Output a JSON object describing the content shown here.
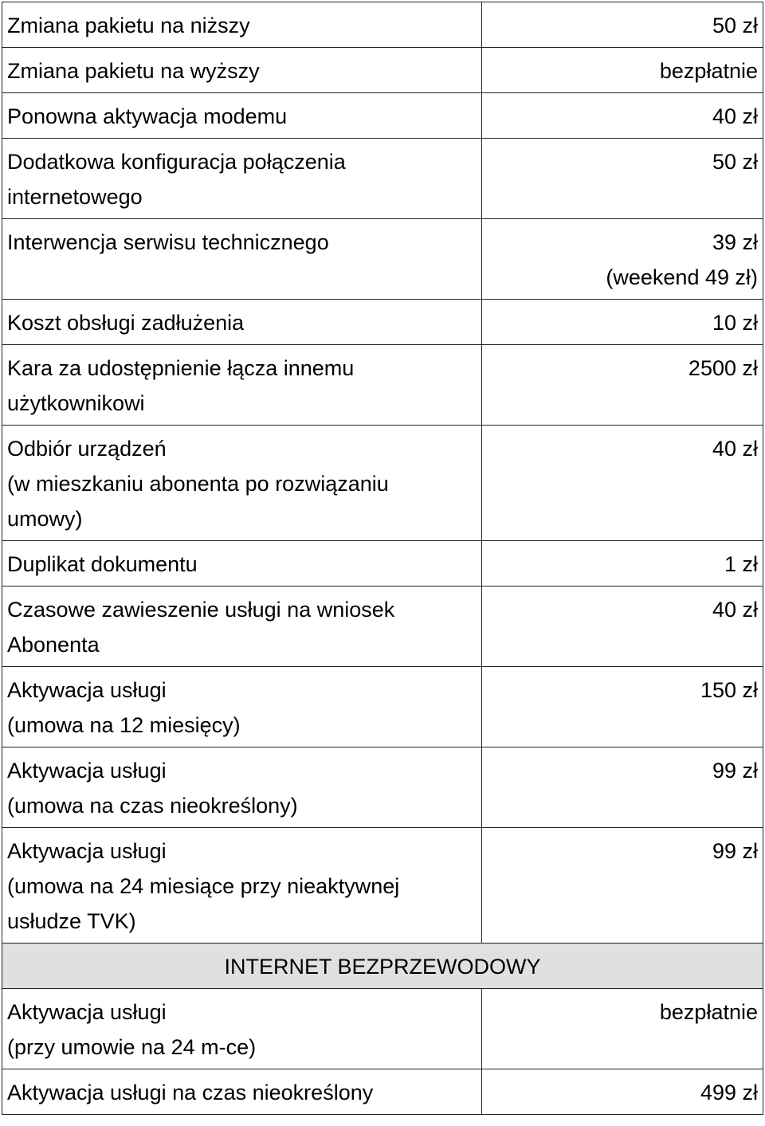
{
  "rows": [
    {
      "label": [
        "Zmiana pakietu na niższy"
      ],
      "price": [
        "50 zł"
      ]
    },
    {
      "label": [
        "Zmiana pakietu na wyższy"
      ],
      "price": [
        "bezpłatnie"
      ]
    },
    {
      "label": [
        "Ponowna aktywacja modemu"
      ],
      "price": [
        "40 zł"
      ]
    },
    {
      "label": [
        "Dodatkowa konfiguracja połączenia",
        "internetowego"
      ],
      "price": [
        "50 zł"
      ]
    },
    {
      "label": [
        "Interwencja serwisu technicznego"
      ],
      "price": [
        "39 zł",
        "(weekend 49 zł)"
      ]
    },
    {
      "label": [
        "Koszt obsługi zadłużenia"
      ],
      "price": [
        "10 zł"
      ]
    },
    {
      "label": [
        "Kara za udostępnienie łącza innemu",
        "użytkownikowi"
      ],
      "price": [
        "2500 zł"
      ]
    },
    {
      "label": [
        "Odbiór urządzeń",
        "(w mieszkaniu abonenta po rozwiązaniu",
        "umowy)"
      ],
      "price": [
        "40 zł"
      ]
    },
    {
      "label": [
        "Duplikat dokumentu"
      ],
      "price": [
        "1 zł"
      ]
    },
    {
      "label": [
        "Czasowe zawieszenie usługi na wniosek",
        "Abonenta"
      ],
      "price": [
        "40 zł"
      ]
    },
    {
      "label": [
        "Aktywacja usługi",
        "(umowa na 12 miesięcy)"
      ],
      "price": [
        "150 zł"
      ]
    },
    {
      "label": [
        "Aktywacja usługi",
        "(umowa na czas nieokreślony)"
      ],
      "price": [
        "99 zł"
      ]
    },
    {
      "label": [
        "Aktywacja usługi",
        "(umowa na 24 miesiące przy nieaktywnej",
        "usłudze TVK)"
      ],
      "price": [
        "99 zł"
      ]
    }
  ],
  "section_title": "INTERNET BEZPRZEWODOWY",
  "wireless_rows": [
    {
      "label": [
        "Aktywacja usługi",
        "(przy umowie na 24 m-ce)"
      ],
      "price": [
        "bezpłatnie"
      ]
    },
    {
      "label": [
        "Aktywacja usługi na czas nieokreślony"
      ],
      "price": [
        "499 zł"
      ]
    }
  ]
}
